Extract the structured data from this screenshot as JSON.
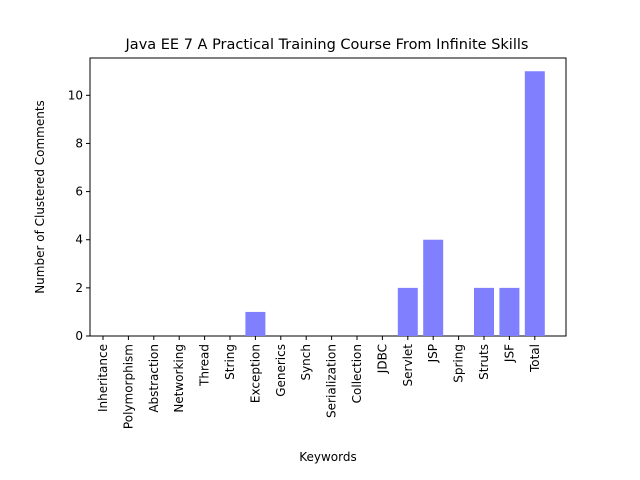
{
  "chart_data": {
    "type": "bar",
    "title": "Java EE 7 A Practical Training Course From Infinite Skills",
    "xlabel": "Keywords",
    "ylabel": "Number of Clustered Comments",
    "categories": [
      "Inheritance",
      "Polymorphism",
      "Abstraction",
      "Networking",
      "Thread",
      "String",
      "Exception",
      "Generics",
      "Synch",
      "Serialization",
      "Collection",
      "JDBC",
      "Servlet",
      "JSP",
      "Spring",
      "Struts",
      "JSF",
      "Total"
    ],
    "values": [
      0,
      0,
      0,
      0,
      0,
      0,
      1,
      0,
      0,
      0,
      0,
      0,
      2,
      4,
      0,
      2,
      2,
      11
    ],
    "ylim": [
      0,
      11.55
    ],
    "yticks": [
      0,
      2,
      4,
      6,
      8,
      10
    ],
    "bar_color": "#8080ff",
    "grid": false,
    "legend": "none"
  }
}
